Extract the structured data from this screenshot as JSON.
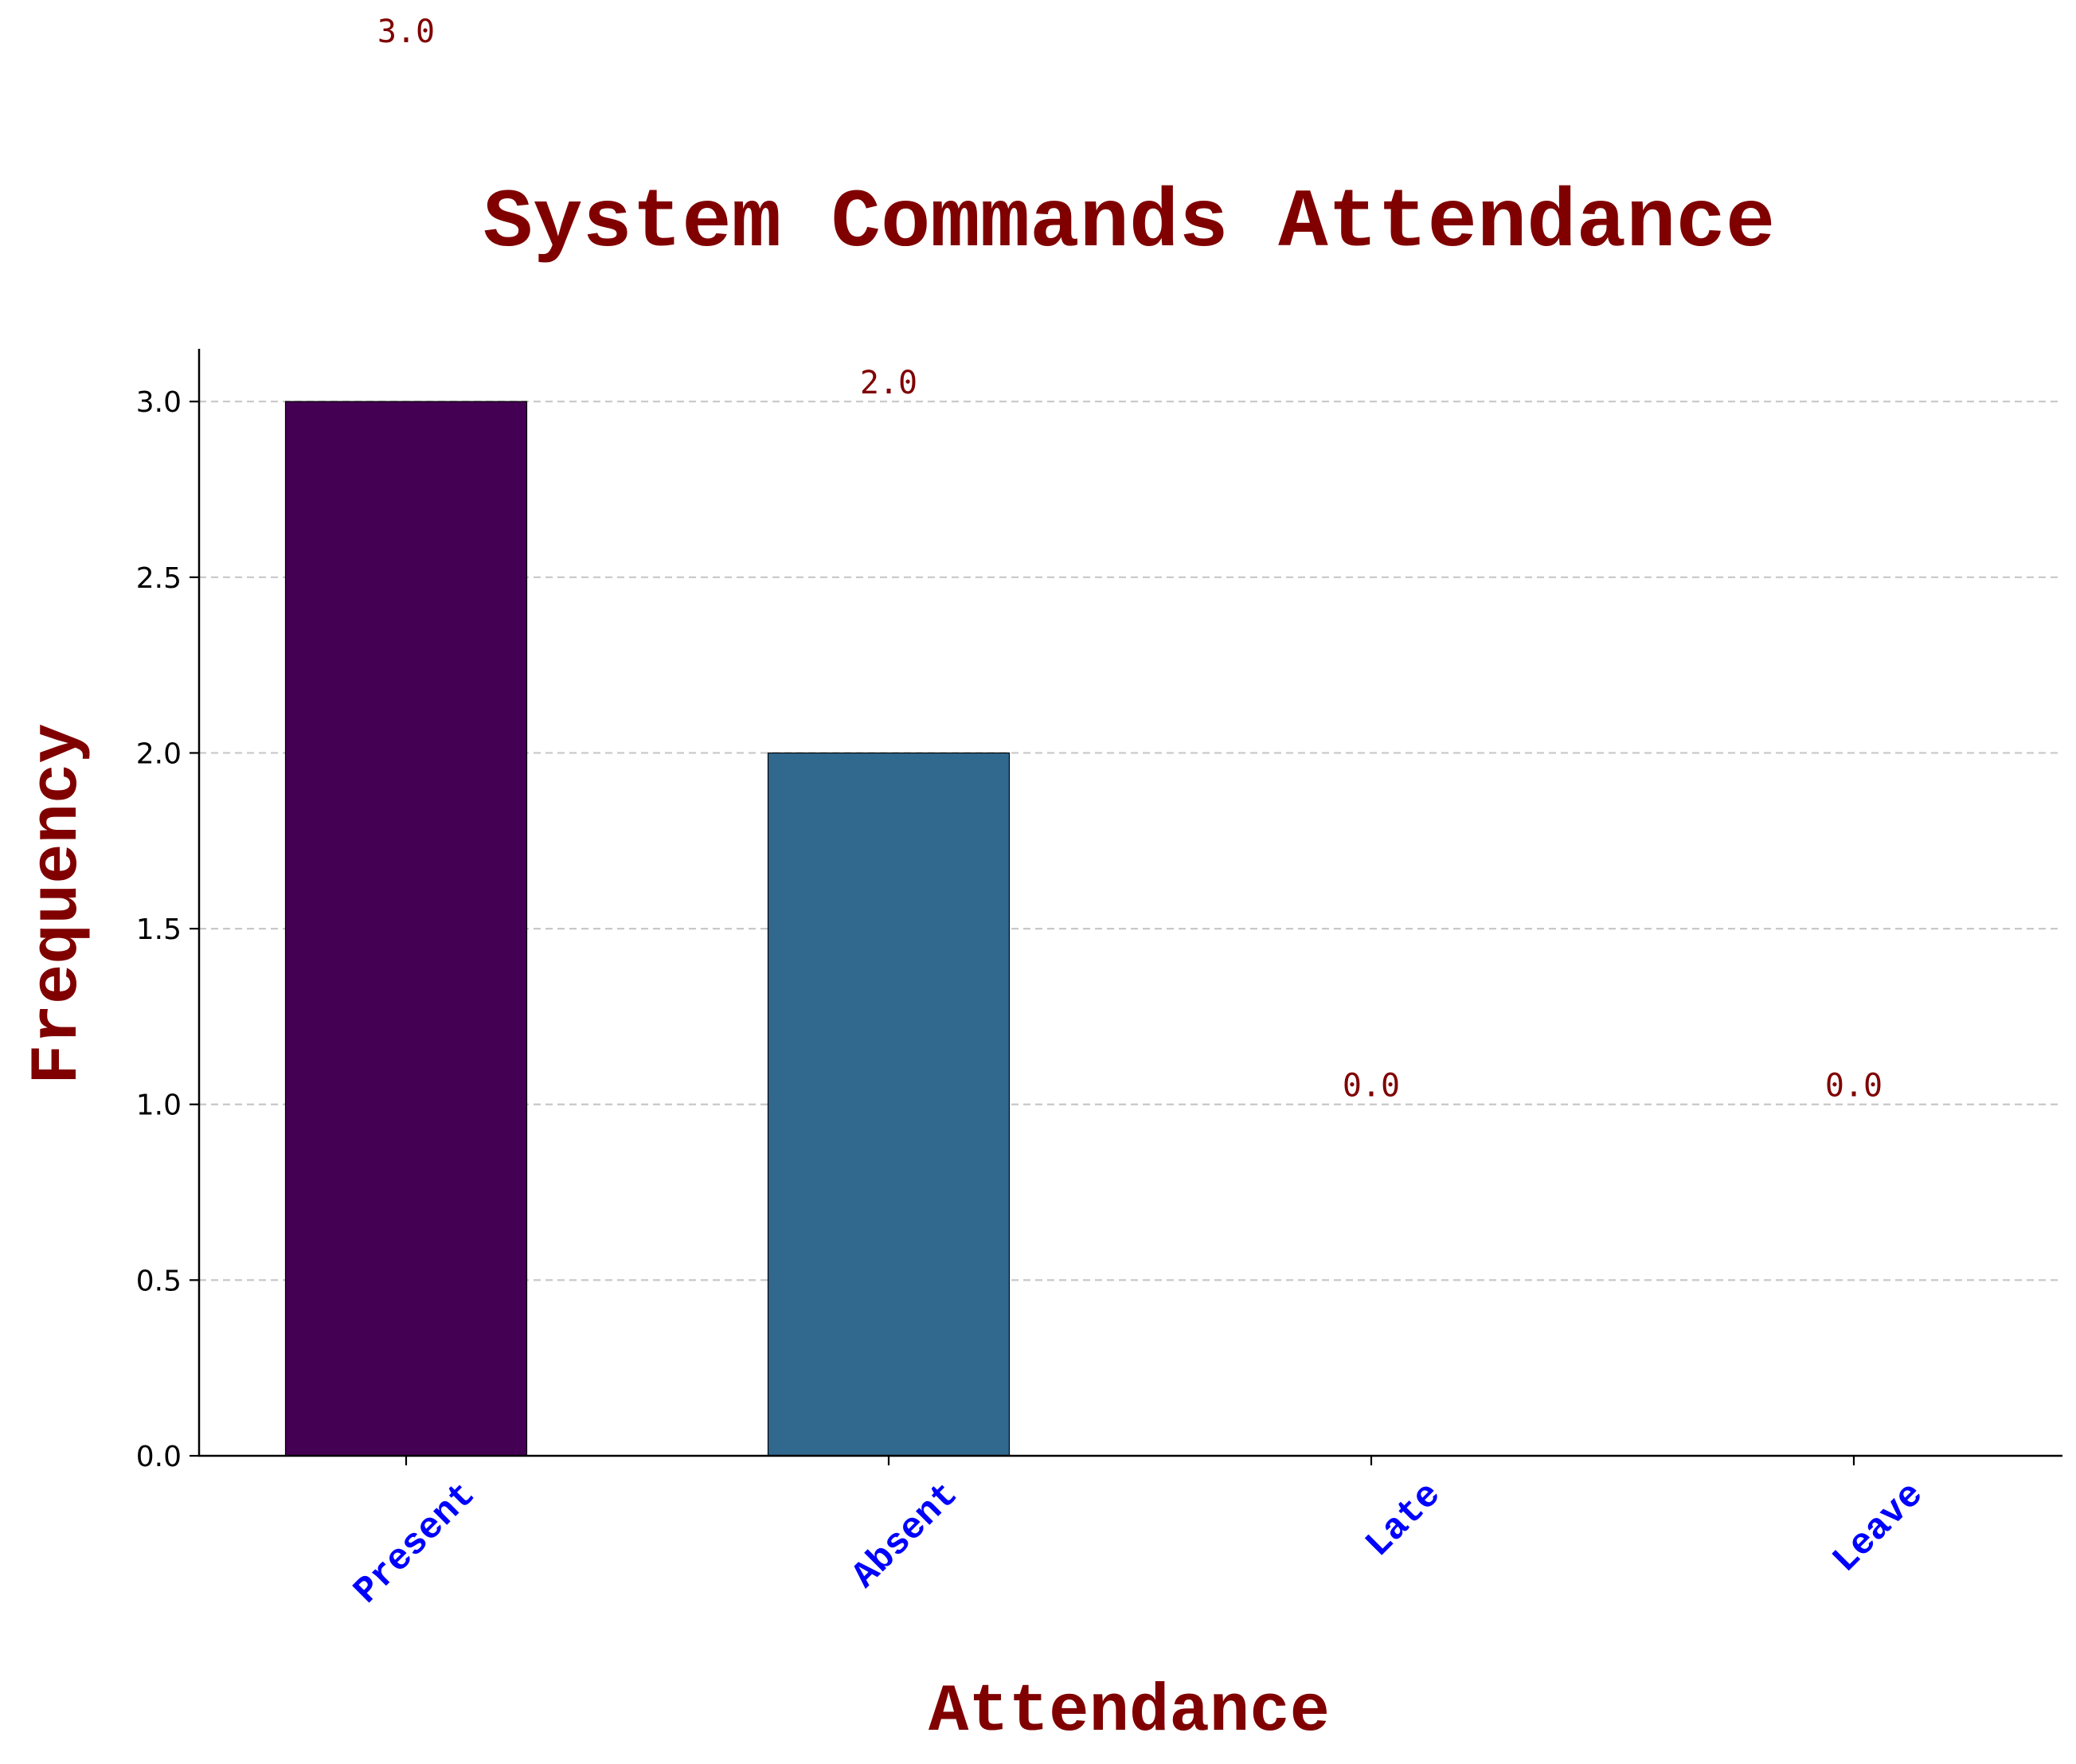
{
  "colors": {
    "title": "#800000",
    "axis_label": "#800000",
    "value_label": "#800000",
    "xtick": "#0000ff",
    "ytick": "#000000",
    "grid": "#c8c8c8",
    "axis": "#000000"
  },
  "chart_data": {
    "type": "bar",
    "title": "System Commands Attendance",
    "xlabel": "Attendance",
    "ylabel": "Frequency",
    "categories": [
      "Present",
      "Absent",
      "Late",
      "Leave"
    ],
    "values": [
      3,
      2,
      0,
      0
    ],
    "value_labels": [
      "3.0",
      "2.0",
      "0.0",
      "0.0"
    ],
    "bar_colors": [
      "#440154",
      "#31688e",
      "#35b779",
      "#fde725"
    ],
    "ylim": [
      0,
      3.15
    ],
    "yticks": [
      0,
      0.5,
      1.0,
      1.5,
      2.0,
      2.5,
      3.0
    ],
    "ytick_labels": [
      "0.0",
      "0.5",
      "1.0",
      "1.5",
      "2.0",
      "2.5",
      "3.0"
    ],
    "grid": "y-dashed",
    "legend": "none"
  }
}
